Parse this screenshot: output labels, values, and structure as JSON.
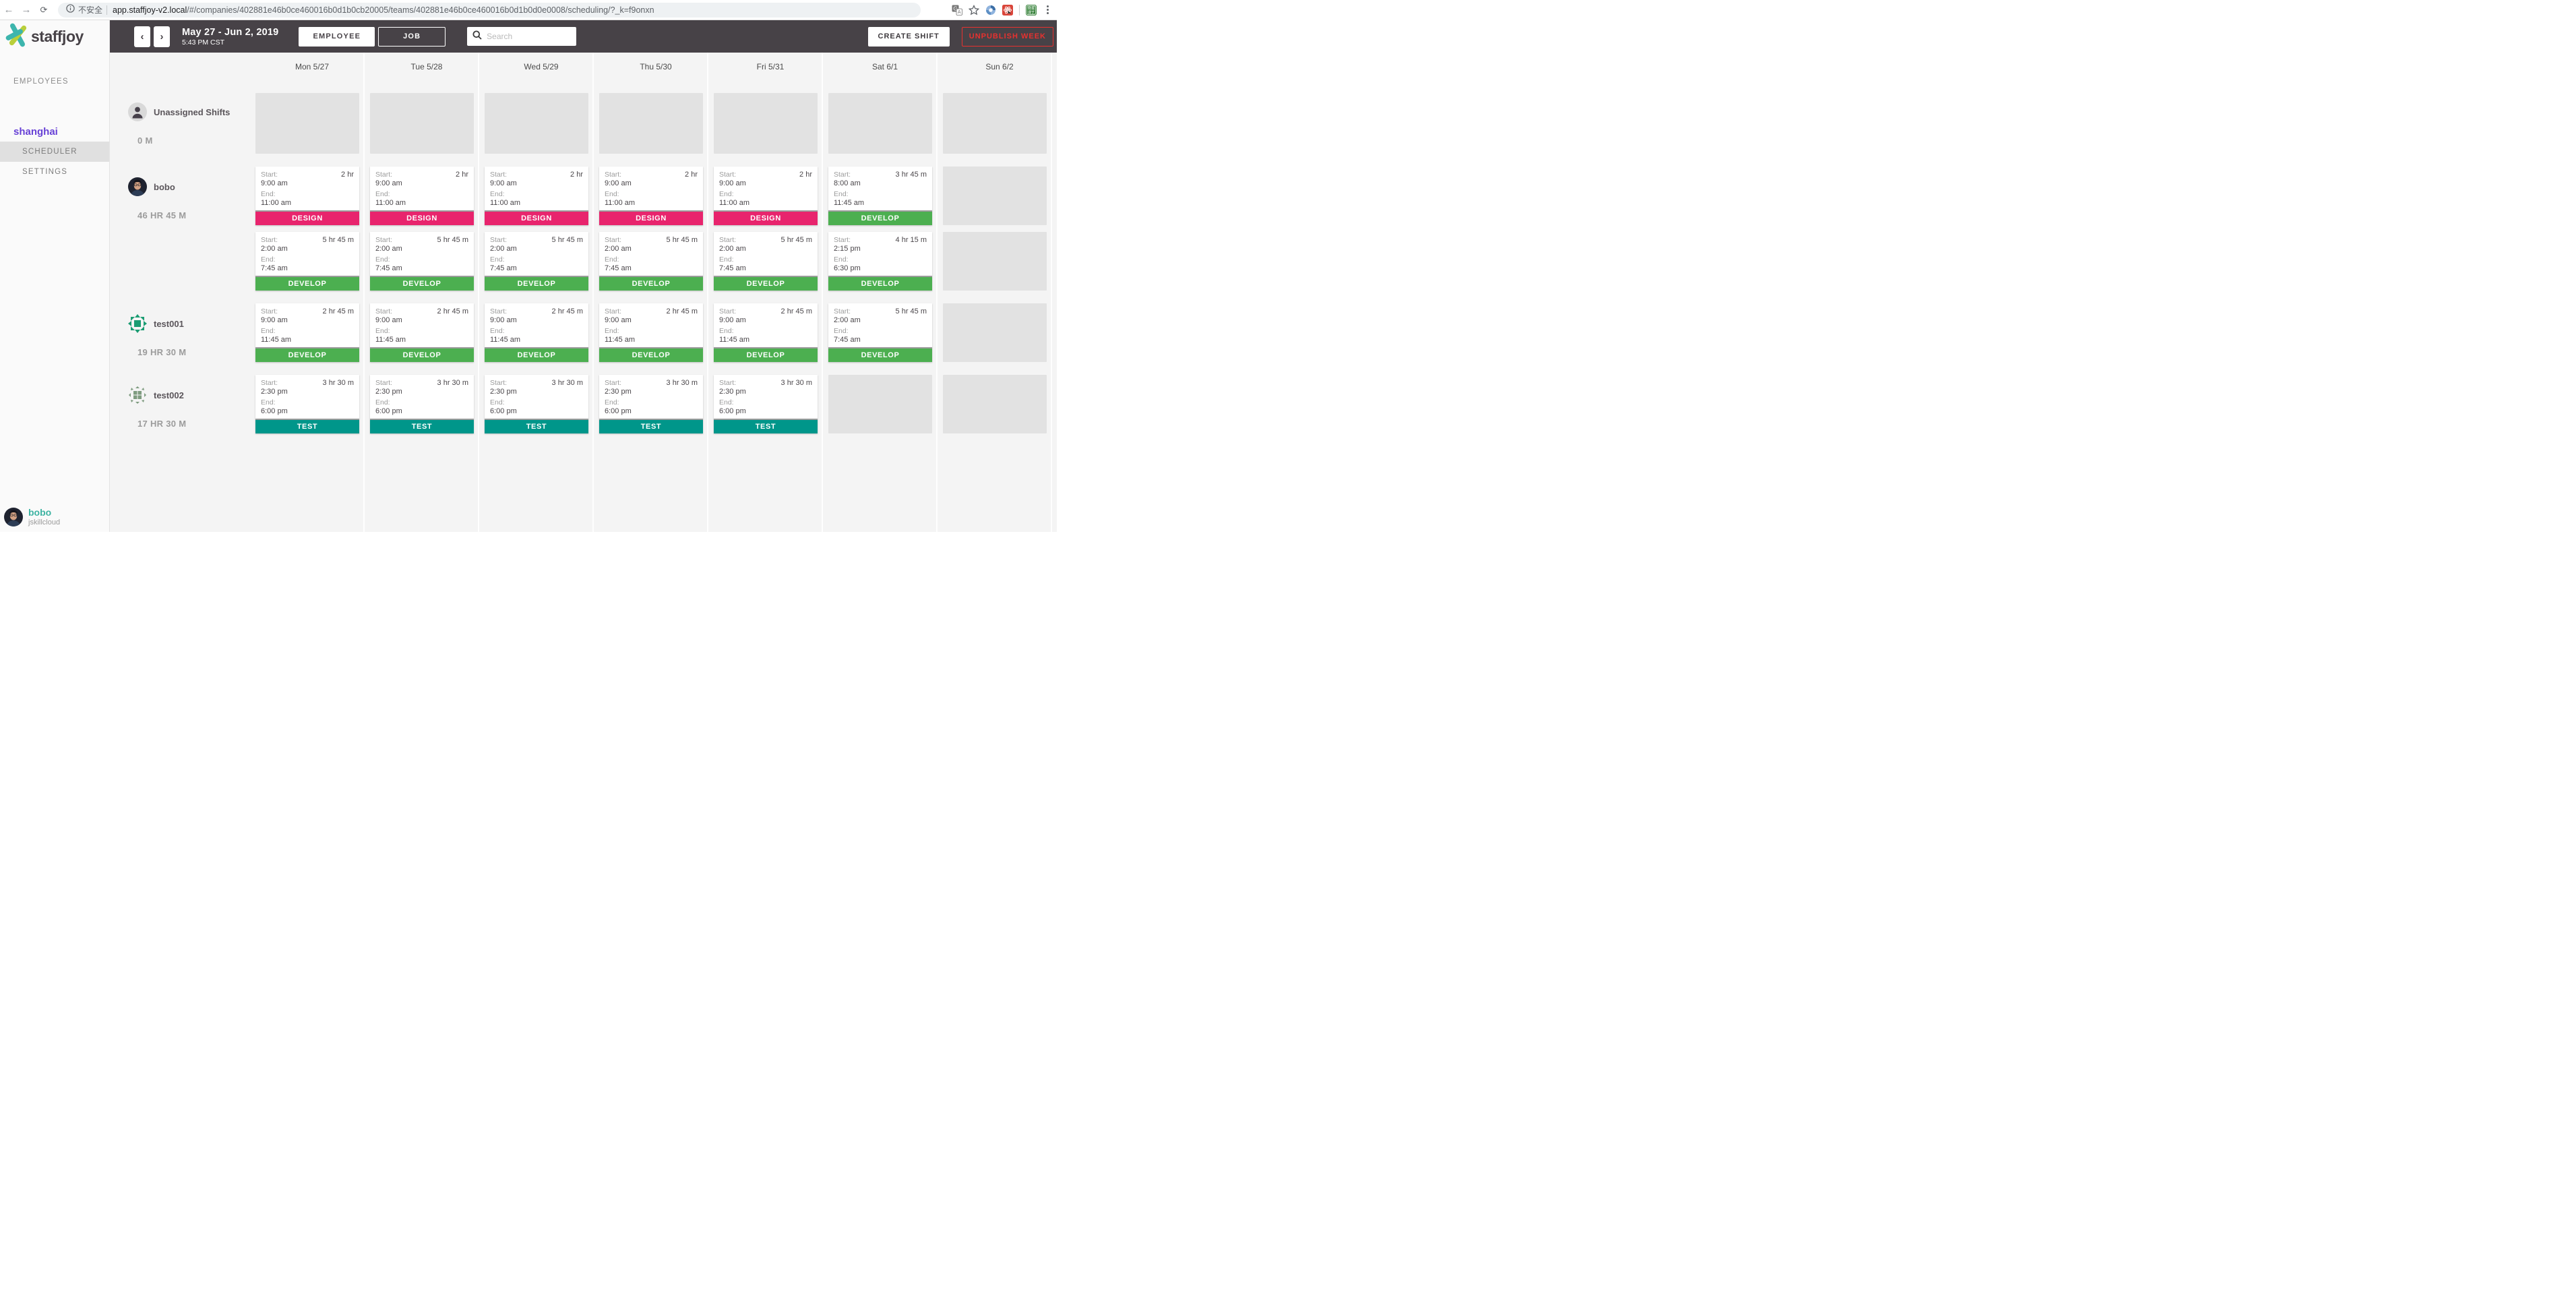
{
  "browser": {
    "back_icon": "back-arrow",
    "forward_icon": "forward-arrow",
    "reload_icon": "reload",
    "security_label": "不安全",
    "url_domain": "app.staffjoy-v2.local",
    "url_path": "/#/companies/402881e46b0ce460016b0d1b0cb20005/teams/402881e46b0ce460016b0d1b0d0e0008/scheduling/?_k=f9onxn",
    "extension_icons": [
      "translate-icon",
      "bookmark-star-icon",
      "blue-swirl-extension-icon",
      "red-atom-extension-icon",
      "green-chinese-extension-icon",
      "browser-menu-icon"
    ],
    "green_extension_text_line1": "微掘",
    "green_extension_text_line2": "课艺"
  },
  "topbar": {
    "date_range": "May 27 - Jun 2, 2019",
    "time": "5:43 PM CST",
    "employee_toggle": "EMPLOYEE",
    "job_toggle": "JOB",
    "search_placeholder": "Search",
    "create_shift": "CREATE SHIFT",
    "unpublish_week": "UNPUBLISH WEEK"
  },
  "sidebar": {
    "brand": "staffjoy",
    "employees_link": "EMPLOYEES",
    "team_name": "shanghai",
    "scheduler_link": "SCHEDULER",
    "settings_link": "SETTINGS",
    "user": {
      "name": "bobo",
      "company": "jskillcloud"
    }
  },
  "schedule": {
    "days": [
      "Mon 5/27",
      "Tue 5/28",
      "Wed 5/29",
      "Thu 5/30",
      "Fri 5/31",
      "Sat 6/1",
      "Sun 6/2"
    ],
    "card_labels": {
      "start": "Start:",
      "end": "End:"
    },
    "job_colors": {
      "DESIGN": "#e8246d",
      "DEVELOP": "#4caf50",
      "TEST": "#00968a"
    },
    "rows": [
      {
        "name": "Unassigned Shifts",
        "hours": "0 M",
        "avatar": "unassigned",
        "lines": [
          [
            {
              "empty": true
            },
            {
              "empty": true
            },
            {
              "empty": true
            },
            {
              "empty": true
            },
            {
              "empty": true
            },
            {
              "empty": true
            },
            {
              "empty": true
            }
          ]
        ]
      },
      {
        "name": "bobo",
        "hours": "46 HR 45 M",
        "avatar": "bobo",
        "lines": [
          [
            {
              "duration": "2 hr",
              "start": "9:00 am",
              "end": "11:00 am",
              "job": "DESIGN"
            },
            {
              "duration": "2 hr",
              "start": "9:00 am",
              "end": "11:00 am",
              "job": "DESIGN"
            },
            {
              "duration": "2 hr",
              "start": "9:00 am",
              "end": "11:00 am",
              "job": "DESIGN"
            },
            {
              "duration": "2 hr",
              "start": "9:00 am",
              "end": "11:00 am",
              "job": "DESIGN"
            },
            {
              "duration": "2 hr",
              "start": "9:00 am",
              "end": "11:00 am",
              "job": "DESIGN"
            },
            {
              "duration": "3 hr 45 m",
              "start": "8:00 am",
              "end": "11:45 am",
              "job": "DEVELOP"
            },
            {
              "empty": true
            }
          ],
          [
            {
              "duration": "5 hr 45 m",
              "start": "2:00 am",
              "end": "7:45 am",
              "job": "DEVELOP"
            },
            {
              "duration": "5 hr 45 m",
              "start": "2:00 am",
              "end": "7:45 am",
              "job": "DEVELOP"
            },
            {
              "duration": "5 hr 45 m",
              "start": "2:00 am",
              "end": "7:45 am",
              "job": "DEVELOP"
            },
            {
              "duration": "5 hr 45 m",
              "start": "2:00 am",
              "end": "7:45 am",
              "job": "DEVELOP"
            },
            {
              "duration": "5 hr 45 m",
              "start": "2:00 am",
              "end": "7:45 am",
              "job": "DEVELOP"
            },
            {
              "duration": "4 hr 15 m",
              "start": "2:15 pm",
              "end": "6:30 pm",
              "job": "DEVELOP"
            },
            {
              "empty": true
            }
          ]
        ]
      },
      {
        "name": "test001",
        "hours": "19 HR 30 M",
        "avatar": "identicon-green",
        "lines": [
          [
            {
              "duration": "2 hr 45 m",
              "start": "9:00 am",
              "end": "11:45 am",
              "job": "DEVELOP"
            },
            {
              "duration": "2 hr 45 m",
              "start": "9:00 am",
              "end": "11:45 am",
              "job": "DEVELOP"
            },
            {
              "duration": "2 hr 45 m",
              "start": "9:00 am",
              "end": "11:45 am",
              "job": "DEVELOP"
            },
            {
              "duration": "2 hr 45 m",
              "start": "9:00 am",
              "end": "11:45 am",
              "job": "DEVELOP"
            },
            {
              "duration": "2 hr 45 m",
              "start": "9:00 am",
              "end": "11:45 am",
              "job": "DEVELOP"
            },
            {
              "duration": "5 hr 45 m",
              "start": "2:00 am",
              "end": "7:45 am",
              "job": "DEVELOP"
            },
            {
              "empty": true
            }
          ]
        ]
      },
      {
        "name": "test002",
        "hours": "17 HR 30 M",
        "avatar": "identicon-sage",
        "lines": [
          [
            {
              "duration": "3 hr 30 m",
              "start": "2:30 pm",
              "end": "6:00 pm",
              "job": "TEST"
            },
            {
              "duration": "3 hr 30 m",
              "start": "2:30 pm",
              "end": "6:00 pm",
              "job": "TEST"
            },
            {
              "duration": "3 hr 30 m",
              "start": "2:30 pm",
              "end": "6:00 pm",
              "job": "TEST"
            },
            {
              "duration": "3 hr 30 m",
              "start": "2:30 pm",
              "end": "6:00 pm",
              "job": "TEST"
            },
            {
              "duration": "3 hr 30 m",
              "start": "2:30 pm",
              "end": "6:00 pm",
              "job": "TEST"
            },
            {
              "empty": true
            },
            {
              "empty": true
            }
          ]
        ]
      }
    ]
  }
}
